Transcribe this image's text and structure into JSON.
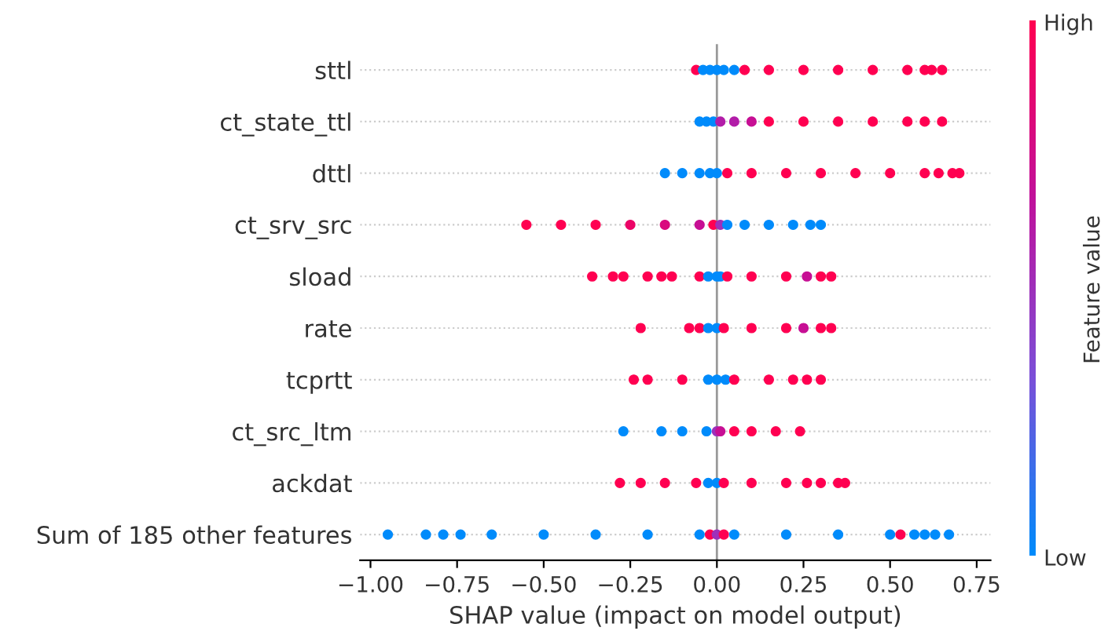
{
  "chart_data": {
    "type": "scatter",
    "orientation": "horizontal",
    "xlabel": "SHAP value (impact on model output)",
    "clabel": "Feature value",
    "categories": [
      "sttl",
      "ct_state_ttl",
      "dttl",
      "ct_srv_src",
      "sload",
      "rate",
      "tcprtt",
      "ct_src_ltm",
      "ackdat",
      "Sum of 185 other features"
    ],
    "xlim": [
      -1.03,
      0.79
    ],
    "xticks": [
      {
        "value": -1.0,
        "label": "−1.00"
      },
      {
        "value": -0.75,
        "label": "−0.75"
      },
      {
        "value": -0.5,
        "label": "−0.50"
      },
      {
        "value": -0.25,
        "label": "−0.25"
      },
      {
        "value": 0,
        "label": "0.00"
      },
      {
        "value": 0.25,
        "label": "0.25"
      },
      {
        "value": 0.5,
        "label": "0.50"
      },
      {
        "value": 0.75,
        "label": "0.75"
      }
    ],
    "clim": [
      0,
      1
    ],
    "cticks": [
      {
        "value": 0,
        "label": "Low"
      },
      {
        "value": 1,
        "label": "High"
      }
    ],
    "grid": "y",
    "line_style": "dotted",
    "marker": "circle",
    "ref_lines": [
      {
        "axis": "x",
        "value": 0,
        "color": "#999999"
      }
    ],
    "series": [
      {
        "x": [
          "sttl",
          "sttl",
          "sttl",
          "sttl",
          "sttl",
          "sttl",
          "sttl",
          "sttl",
          "sttl",
          "sttl",
          "sttl",
          "sttl",
          "sttl",
          "sttl",
          "sttl"
        ],
        "values": [
          -0.06,
          -0.04,
          -0.02,
          0,
          0.02,
          0.05,
          0.08,
          0.15,
          0.25,
          0.35,
          0.45,
          0.55,
          0.6,
          0.62,
          0.65
        ],
        "cvalues": [
          1,
          0,
          0,
          0,
          0,
          0,
          1,
          1,
          1,
          1,
          1,
          1,
          1,
          1,
          1
        ],
        "colors": [
          "#ff0051",
          "#008bfb",
          "#008bfb",
          "#008bfb",
          "#008bfb",
          "#008bfb",
          "#ff0051",
          "#ff0051",
          "#ff0051",
          "#ff0051",
          "#ff0051",
          "#ff0051",
          "#ff0051",
          "#ff0051",
          "#ff0051"
        ]
      },
      {
        "x": [
          "ct_state_ttl",
          "ct_state_ttl",
          "ct_state_ttl",
          "ct_state_ttl",
          "ct_state_ttl",
          "ct_state_ttl",
          "ct_state_ttl",
          "ct_state_ttl",
          "ct_state_ttl",
          "ct_state_ttl",
          "ct_state_ttl",
          "ct_state_ttl",
          "ct_state_ttl"
        ],
        "values": [
          -0.05,
          -0.03,
          -0.01,
          0.01,
          0.05,
          0.1,
          0.15,
          0.25,
          0.35,
          0.45,
          0.55,
          0.6,
          0.65
        ],
        "cvalues": [
          0,
          0,
          0,
          0.6,
          0.6,
          0.7,
          1,
          1,
          1,
          1,
          1,
          1,
          1
        ],
        "colors": [
          "#008bfb",
          "#008bfb",
          "#008bfb",
          "#b21da8",
          "#b21da8",
          "#c60f94",
          "#ff0051",
          "#ff0051",
          "#ff0051",
          "#ff0051",
          "#ff0051",
          "#ff0051",
          "#ff0051"
        ]
      },
      {
        "x": [
          "dttl",
          "dttl",
          "dttl",
          "dttl",
          "dttl",
          "dttl",
          "dttl",
          "dttl",
          "dttl",
          "dttl",
          "dttl",
          "dttl",
          "dttl",
          "dttl",
          "dttl"
        ],
        "values": [
          -0.15,
          -0.1,
          -0.05,
          -0.02,
          0,
          0.03,
          0.1,
          0.2,
          0.3,
          0.4,
          0.5,
          0.6,
          0.64,
          0.68,
          0.7
        ],
        "cvalues": [
          0,
          0,
          0,
          0,
          0,
          1,
          1,
          1,
          1,
          1,
          1,
          1,
          1,
          1,
          1
        ],
        "colors": [
          "#008bfb",
          "#008bfb",
          "#008bfb",
          "#008bfb",
          "#008bfb",
          "#ff0051",
          "#ff0051",
          "#ff0051",
          "#ff0051",
          "#ff0051",
          "#ff0051",
          "#ff0051",
          "#ff0051",
          "#ff0051",
          "#ff0051"
        ]
      },
      {
        "x": [
          "ct_srv_src",
          "ct_srv_src",
          "ct_srv_src",
          "ct_srv_src",
          "ct_srv_src",
          "ct_srv_src",
          "ct_srv_src",
          "ct_srv_src",
          "ct_srv_src",
          "ct_srv_src",
          "ct_srv_src",
          "ct_srv_src",
          "ct_srv_src",
          "ct_srv_src"
        ],
        "values": [
          -0.55,
          -0.45,
          -0.35,
          -0.25,
          -0.15,
          -0.05,
          -0.01,
          0.01,
          0.03,
          0.08,
          0.15,
          0.22,
          0.27,
          0.3
        ],
        "cvalues": [
          1,
          1,
          1,
          0.9,
          0.8,
          0.7,
          1,
          0.5,
          0,
          0,
          0,
          0,
          0,
          0
        ],
        "colors": [
          "#ff0051",
          "#ff0051",
          "#ff0051",
          "#ec0567",
          "#d90a7e",
          "#c60f94",
          "#ff0051",
          "#9d30ba",
          "#008bfb",
          "#008bfb",
          "#008bfb",
          "#008bfb",
          "#008bfb",
          "#008bfb"
        ]
      },
      {
        "x": [
          "sload",
          "sload",
          "sload",
          "sload",
          "sload",
          "sload",
          "sload",
          "sload",
          "sload",
          "sload",
          "sload",
          "sload",
          "sload",
          "sload",
          "sload",
          "sload"
        ],
        "values": [
          -0.36,
          -0.3,
          -0.27,
          -0.2,
          -0.16,
          -0.13,
          -0.05,
          -0.025,
          0,
          0.01,
          0.03,
          0.1,
          0.2,
          0.26,
          0.3,
          0.33
        ],
        "cvalues": [
          1,
          1,
          1,
          1,
          1,
          1,
          1,
          0,
          0,
          0,
          1,
          1,
          1,
          0.7,
          1,
          1
        ],
        "colors": [
          "#ff0051",
          "#ff0051",
          "#ff0051",
          "#ff0051",
          "#ff0051",
          "#ff0051",
          "#ff0051",
          "#008bfb",
          "#008bfb",
          "#008bfb",
          "#ff0051",
          "#ff0051",
          "#ff0051",
          "#c60f94",
          "#ff0051",
          "#ff0051"
        ]
      },
      {
        "x": [
          "rate",
          "rate",
          "rate",
          "rate",
          "rate",
          "rate",
          "rate",
          "rate",
          "rate",
          "rate",
          "rate"
        ],
        "values": [
          -0.22,
          -0.08,
          -0.05,
          -0.025,
          0,
          0.02,
          0.1,
          0.2,
          0.25,
          0.3,
          0.33
        ],
        "cvalues": [
          1,
          1,
          1,
          0,
          0,
          1,
          1,
          1,
          0.7,
          1,
          1
        ],
        "colors": [
          "#ff0051",
          "#ff0051",
          "#ff0051",
          "#008bfb",
          "#008bfb",
          "#ff0051",
          "#ff0051",
          "#ff0051",
          "#c60f94",
          "#ff0051",
          "#ff0051"
        ]
      },
      {
        "x": [
          "tcprtt",
          "tcprtt",
          "tcprtt",
          "tcprtt",
          "tcprtt",
          "tcprtt",
          "tcprtt",
          "tcprtt",
          "tcprtt",
          "tcprtt",
          "tcprtt"
        ],
        "values": [
          -0.24,
          -0.2,
          -0.1,
          -0.025,
          0,
          0.025,
          0.05,
          0.15,
          0.22,
          0.26,
          0.3
        ],
        "cvalues": [
          1,
          1,
          1,
          0,
          0,
          0,
          1,
          1,
          1,
          1,
          1
        ],
        "colors": [
          "#ff0051",
          "#ff0051",
          "#ff0051",
          "#008bfb",
          "#008bfb",
          "#008bfb",
          "#ff0051",
          "#ff0051",
          "#ff0051",
          "#ff0051",
          "#ff0051"
        ]
      },
      {
        "x": [
          "ct_src_ltm",
          "ct_src_ltm",
          "ct_src_ltm",
          "ct_src_ltm",
          "ct_src_ltm",
          "ct_src_ltm",
          "ct_src_ltm",
          "ct_src_ltm",
          "ct_src_ltm",
          "ct_src_ltm"
        ],
        "values": [
          -0.27,
          -0.16,
          -0.1,
          -0.03,
          0,
          0.01,
          0.05,
          0.1,
          0.17,
          0.24
        ],
        "cvalues": [
          0,
          0,
          0,
          0,
          0.5,
          0.7,
          1,
          1,
          1,
          1
        ],
        "colors": [
          "#008bfb",
          "#008bfb",
          "#008bfb",
          "#008bfb",
          "#9d30ba",
          "#c60f94",
          "#ff0051",
          "#ff0051",
          "#ff0051",
          "#ff0051"
        ]
      },
      {
        "x": [
          "ackdat",
          "ackdat",
          "ackdat",
          "ackdat",
          "ackdat",
          "ackdat",
          "ackdat",
          "ackdat",
          "ackdat",
          "ackdat",
          "ackdat",
          "ackdat",
          "ackdat"
        ],
        "values": [
          -0.28,
          -0.22,
          -0.15,
          -0.06,
          -0.025,
          0,
          0.02,
          0.1,
          0.2,
          0.26,
          0.3,
          0.35,
          0.37
        ],
        "cvalues": [
          1,
          1,
          1,
          1,
          0,
          0,
          1,
          1,
          1,
          1,
          1,
          1,
          1
        ],
        "colors": [
          "#ff0051",
          "#ff0051",
          "#ff0051",
          "#ff0051",
          "#008bfb",
          "#008bfb",
          "#ff0051",
          "#ff0051",
          "#ff0051",
          "#ff0051",
          "#ff0051",
          "#ff0051",
          "#ff0051"
        ]
      },
      {
        "x": [
          "Sum of 185 other features",
          "Sum of 185 other features",
          "Sum of 185 other features",
          "Sum of 185 other features",
          "Sum of 185 other features",
          "Sum of 185 other features",
          "Sum of 185 other features",
          "Sum of 185 other features",
          "Sum of 185 other features",
          "Sum of 185 other features",
          "Sum of 185 other features",
          "Sum of 185 other features",
          "Sum of 185 other features",
          "Sum of 185 other features",
          "Sum of 185 other features",
          "Sum of 185 other features",
          "Sum of 185 other features",
          "Sum of 185 other features",
          "Sum of 185 other features",
          "Sum of 185 other features",
          "Sum of 185 other features"
        ],
        "values": [
          -0.95,
          -0.84,
          -0.79,
          -0.74,
          -0.65,
          -0.5,
          -0.35,
          -0.2,
          -0.05,
          -0.02,
          0,
          0.02,
          0.05,
          0.2,
          0.35,
          0.5,
          0.53,
          0.57,
          0.6,
          0.63,
          0.67
        ],
        "cvalues": [
          0,
          0,
          0,
          0,
          0,
          0,
          0,
          0,
          0,
          1,
          0.5,
          1,
          0,
          0,
          0,
          0,
          1,
          0,
          0,
          0,
          0
        ],
        "colors": [
          "#008bfb",
          "#008bfb",
          "#008bfb",
          "#008bfb",
          "#008bfb",
          "#008bfb",
          "#008bfb",
          "#008bfb",
          "#008bfb",
          "#ff0051",
          "#9d30ba",
          "#ff0051",
          "#008bfb",
          "#008bfb",
          "#008bfb",
          "#008bfb",
          "#ff0051",
          "#008bfb",
          "#008bfb",
          "#008bfb",
          "#008bfb"
        ]
      }
    ]
  }
}
